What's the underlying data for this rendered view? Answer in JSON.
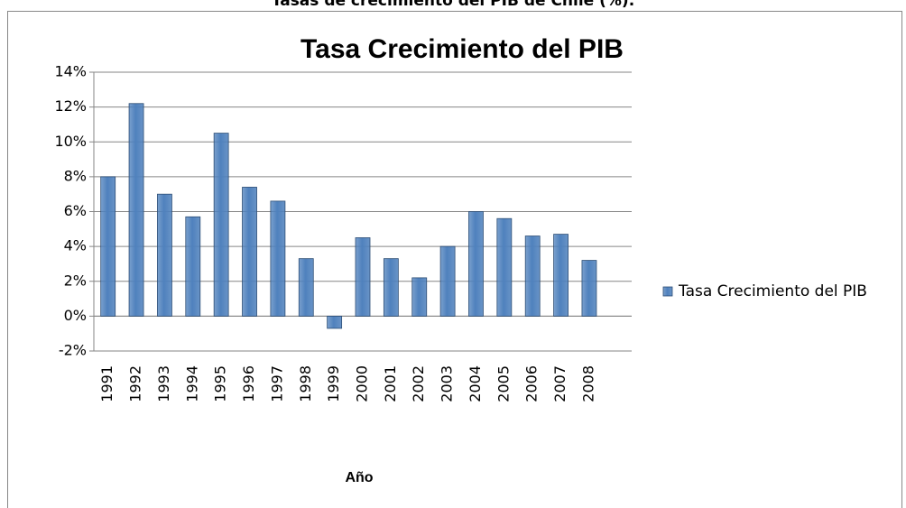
{
  "page_title": "Tasas de crecimiento del PIB de Chile (%).",
  "chart_data": {
    "type": "bar",
    "title": "Tasa Crecimiento del PIB",
    "x_label": "Año",
    "categories": [
      "1991",
      "1992",
      "1993",
      "1994",
      "1995",
      "1996",
      "1997",
      "1998",
      "1999",
      "2000",
      "2001",
      "2002",
      "2003",
      "2004",
      "2005",
      "2006",
      "2007",
      "2008",
      null
    ],
    "series": [
      {
        "name": "Tasa Crecimiento del PIB",
        "color": "#4f81bd",
        "values": [
          8.0,
          12.2,
          7.0,
          5.7,
          10.5,
          7.4,
          6.6,
          3.3,
          -0.7,
          4.5,
          3.3,
          2.2,
          4.0,
          6.0,
          5.6,
          4.6,
          4.7,
          3.2,
          null
        ]
      }
    ],
    "ylim": [
      -2,
      14
    ],
    "yticks": [
      {
        "value": -2,
        "label": "-2%"
      },
      {
        "value": 0,
        "label": "0%"
      },
      {
        "value": 2,
        "label": "2%"
      },
      {
        "value": 4,
        "label": "4%"
      },
      {
        "value": 6,
        "label": "6%"
      },
      {
        "value": 8,
        "label": "8%"
      },
      {
        "value": 10,
        "label": "10%"
      },
      {
        "value": 12,
        "label": "12%"
      },
      {
        "value": 14,
        "label": "14%"
      }
    ],
    "grid": true,
    "legend": "right"
  }
}
